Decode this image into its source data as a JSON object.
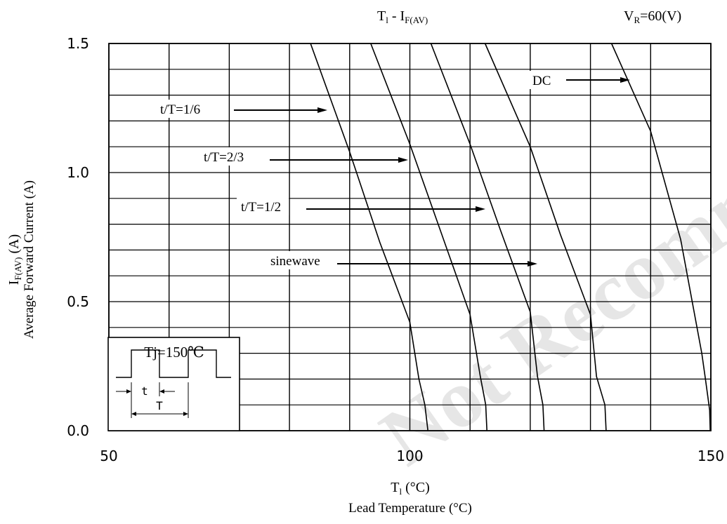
{
  "header": {
    "title_main": "T",
    "title_sub": "l",
    "title_sep": " - I",
    "title_sub2": "F(AV)",
    "condition_main": "V",
    "condition_sub": "R",
    "condition_tail": "=60(V)"
  },
  "axis": {
    "x_label_main": "T",
    "x_label_sub": "l",
    "x_label_tail": " (°C)",
    "x_label_2": "Lead Temperature (°C)",
    "y_label_main": "I",
    "y_label_sub": "F(AV)",
    "y_label_tail": " (A)",
    "y_label_2": "Average Forward Current (A)",
    "x_tick_labels": [
      "50",
      "100",
      "150"
    ],
    "y_tick_labels": [
      "0.0",
      "0.5",
      "1.0",
      "1.5"
    ]
  },
  "inset": {
    "temp_label": "Tj=150℃",
    "t_label": "t",
    "T_label": "T"
  },
  "watermark": {
    "text": "Not Recommended for New Design"
  },
  "colors": {
    "line": "#000000",
    "grid": "#000000",
    "background": "#ffffff",
    "watermark": "#d9d9d9"
  },
  "chart_data": {
    "type": "line",
    "xlim": [
      50,
      150
    ],
    "ylim": [
      0,
      1.5
    ],
    "grid": true,
    "x_major_ticks": [
      50,
      100,
      150
    ],
    "y_major_ticks": [
      0,
      0.5,
      1.0,
      1.5
    ],
    "series": [
      {
        "name": "t/T=1/6",
        "annotation": "t/T=1/6",
        "x": [
          83.5,
          90,
          95,
          100,
          101.5,
          102.5,
          103.0
        ],
        "y": [
          1.5,
          1.08,
          0.73,
          0.42,
          0.2,
          0.1,
          0.0
        ]
      },
      {
        "name": "t/T=2/3",
        "annotation": "t/T=2/3",
        "x": [
          93.5,
          100,
          105,
          110,
          111.7,
          112.6,
          112.8
        ],
        "y": [
          1.5,
          1.11,
          0.78,
          0.45,
          0.21,
          0.1,
          0.0
        ]
      },
      {
        "name": "t/T=1/2",
        "annotation": "t/T=1/2",
        "x": [
          103.5,
          110,
          115,
          120,
          121.2,
          122.1,
          122.3
        ],
        "y": [
          1.5,
          1.11,
          0.78,
          0.46,
          0.21,
          0.1,
          0.0
        ]
      },
      {
        "name": "sinewave",
        "annotation": "sinewave",
        "x": [
          112.5,
          120,
          125,
          130,
          131.0,
          132.4,
          132.6
        ],
        "y": [
          1.5,
          1.1,
          0.76,
          0.45,
          0.21,
          0.1,
          0.0
        ]
      },
      {
        "name": "DC",
        "annotation": "DC",
        "x": [
          133.5,
          140,
          145,
          148.5,
          149.1,
          149.8,
          149.9
        ],
        "y": [
          1.5,
          1.16,
          0.74,
          0.3,
          0.2,
          0.08,
          0.0
        ]
      }
    ]
  }
}
